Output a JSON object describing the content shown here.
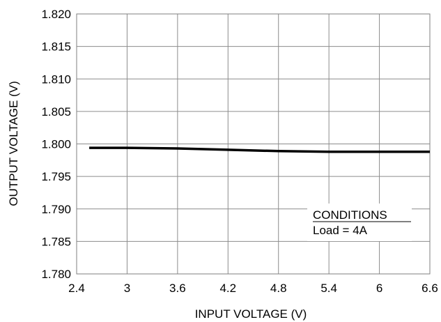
{
  "chart_data": {
    "type": "line",
    "xlabel": "INPUT VOLTAGE (V)",
    "ylabel": "OUTPUT VOLTAGE (V)",
    "xlim": [
      2.4,
      6.6
    ],
    "ylim": [
      1.78,
      1.82
    ],
    "x_ticks": [
      "2.4",
      "3",
      "3.6",
      "4.2",
      "4.8",
      "5.4",
      "6",
      "6.6"
    ],
    "y_ticks": [
      "1.780",
      "1.785",
      "1.790",
      "1.795",
      "1.800",
      "1.805",
      "1.810",
      "1.815",
      "1.820"
    ],
    "grid": true,
    "series": [
      {
        "x": [
          2.55,
          3.0,
          3.6,
          4.2,
          4.8,
          5.4,
          6.0,
          6.6
        ],
        "y": [
          1.7994,
          1.7994,
          1.7993,
          1.7991,
          1.7989,
          1.7988,
          1.7988,
          1.7988
        ],
        "color": "#000000"
      }
    ]
  },
  "conditions": {
    "title": "CONDITIONS",
    "text": "Load = 4A"
  }
}
